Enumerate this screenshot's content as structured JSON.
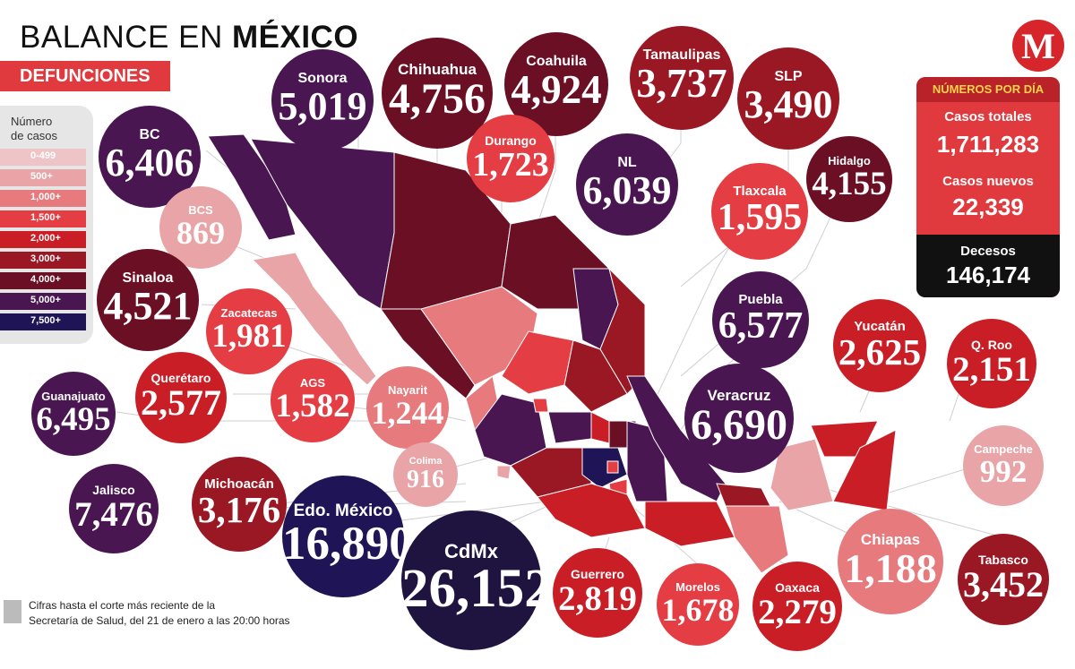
{
  "title_prefix": "BALANCE EN ",
  "title_bold": "MÉXICO",
  "subtitle": "DEFUNCIONES",
  "legend": {
    "title_line1": "Número",
    "title_line2": "de casos",
    "items": [
      {
        "label": "0-499",
        "color": "#efc4c6"
      },
      {
        "label": "500+",
        "color": "#e8a4a6"
      },
      {
        "label": "1,000+",
        "color": "#e77a7d"
      },
      {
        "label": "1,500+",
        "color": "#e43d44"
      },
      {
        "label": "2,000+",
        "color": "#c91e26"
      },
      {
        "label": "3,000+",
        "color": "#9a1724"
      },
      {
        "label": "4,000+",
        "color": "#6a0f24"
      },
      {
        "label": "5,000+",
        "color": "#4a1652"
      },
      {
        "label": "7,500+",
        "color": "#1f1456"
      }
    ]
  },
  "states": [
    {
      "name": "Sonora",
      "value": "5,019",
      "color": "#4a1652"
    },
    {
      "name": "Chihuahua",
      "value": "4,756",
      "color": "#6a0f24"
    },
    {
      "name": "Coahuila",
      "value": "4,924",
      "color": "#6a0f24"
    },
    {
      "name": "Tamaulipas",
      "value": "3,737",
      "color": "#9a1724"
    },
    {
      "name": "SLP",
      "value": "3,490",
      "color": "#9a1724"
    },
    {
      "name": "BC",
      "value": "6,406",
      "color": "#4a1652"
    },
    {
      "name": "Durango",
      "value": "1,723",
      "color": "#e43d44"
    },
    {
      "name": "NL",
      "value": "6,039",
      "color": "#4a1652"
    },
    {
      "name": "Hidalgo",
      "value": "4,155",
      "color": "#6a0f24"
    },
    {
      "name": "BCS",
      "value": "869",
      "color": "#e8a4a6"
    },
    {
      "name": "Tlaxcala",
      "value": "1,595",
      "color": "#e43d44"
    },
    {
      "name": "Sinaloa",
      "value": "4,521",
      "color": "#6a0f24"
    },
    {
      "name": "Zacatecas",
      "value": "1,981",
      "color": "#e43d44"
    },
    {
      "name": "Puebla",
      "value": "6,577",
      "color": "#4a1652"
    },
    {
      "name": "Yucatán",
      "value": "2,625",
      "color": "#c91e26"
    },
    {
      "name": "Q. Roo",
      "value": "2,151",
      "color": "#c91e26"
    },
    {
      "name": "Guanajuato",
      "value": "6,495",
      "color": "#4a1652"
    },
    {
      "name": "Querétaro",
      "value": "2,577",
      "color": "#c91e26"
    },
    {
      "name": "AGS",
      "value": "1,582",
      "color": "#e43d44"
    },
    {
      "name": "Nayarit",
      "value": "1,244",
      "color": "#e77a7d"
    },
    {
      "name": "Veracruz",
      "value": "6,690",
      "color": "#4a1652"
    },
    {
      "name": "Campeche",
      "value": "992",
      "color": "#e8a4a6"
    },
    {
      "name": "Colima",
      "value": "916",
      "color": "#e8a4a6"
    },
    {
      "name": "Jalisco",
      "value": "7,476",
      "color": "#4a1652"
    },
    {
      "name": "Michoacán",
      "value": "3,176",
      "color": "#9a1724"
    },
    {
      "name": "Edo. México",
      "value": "16,890",
      "color": "#1f1456"
    },
    {
      "name": "CdMx",
      "value": "26,152",
      "color": "#1f1440"
    },
    {
      "name": "Guerrero",
      "value": "2,819",
      "color": "#c91e26"
    },
    {
      "name": "Morelos",
      "value": "1,678",
      "color": "#e43d44"
    },
    {
      "name": "Oaxaca",
      "value": "2,279",
      "color": "#c91e26"
    },
    {
      "name": "Chiapas",
      "value": "1,188",
      "color": "#e77a7d"
    },
    {
      "name": "Tabasco",
      "value": "3,452",
      "color": "#9a1724"
    }
  ],
  "panel": {
    "heading": "NÚMEROS POR DÍA",
    "total_label": "Casos totales",
    "total_value": "1,711,283",
    "new_label": "Casos nuevos",
    "new_value": "22,339",
    "deaths_label": "Decesos",
    "deaths_value": "146,174"
  },
  "logo_letter": "M",
  "footnote_line1": "Cifras hasta el corte más reciente de la",
  "footnote_line2": "Secretaría de Salud, del 21 de enero a las 20:00 horas"
}
